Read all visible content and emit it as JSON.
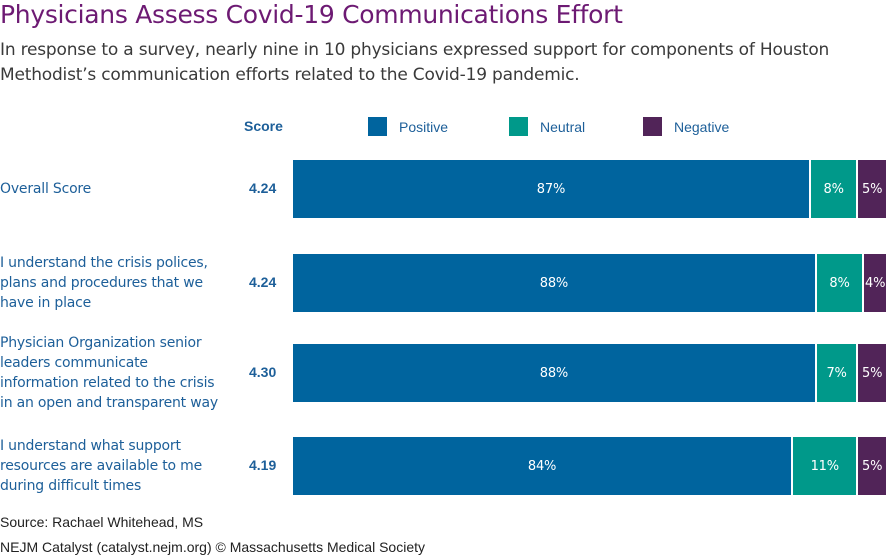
{
  "title": "Physicians Assess Covid-19 Communications Effort",
  "subtitle": "In response to a survey, nearly nine in 10 physicians expressed support for components of Houston Methodist’s communication efforts related to the Covid-19 pandemic.",
  "source": "Source: Rachael Whitehead, MS",
  "credit": "NEJM Catalyst (catalyst.nejm.org) © Massachusetts Medical Society",
  "colors": {
    "positive": "#00649e",
    "neutral": "#00998a",
    "negative": "#512458",
    "title": "#6d1a73",
    "label": "#1d5f99"
  },
  "chart_data": {
    "type": "bar",
    "orientation": "horizontal",
    "stacked": true,
    "title": "Physicians Assess Covid-19 Communications Effort",
    "score_header": "Score",
    "legend": [
      "Positive",
      "Neutral",
      "Negative"
    ],
    "legend_position": "top",
    "categories": [
      "Overall Score",
      "I understand the crisis polices, plans and procedures that we have in place",
      "Physician Organization senior leaders communicate information related to the crisis in an open and transparent way",
      "I understand what support resources are available to me during difficult times"
    ],
    "scores": [
      "4.24",
      "4.24",
      "4.30",
      "4.19"
    ],
    "series": [
      {
        "name": "Positive",
        "values": [
          87,
          88,
          88,
          84
        ]
      },
      {
        "name": "Neutral",
        "values": [
          8,
          8,
          7,
          11
        ]
      },
      {
        "name": "Negative",
        "values": [
          5,
          4,
          5,
          5
        ]
      }
    ],
    "unit": "%",
    "xlim": [
      0,
      100
    ]
  }
}
